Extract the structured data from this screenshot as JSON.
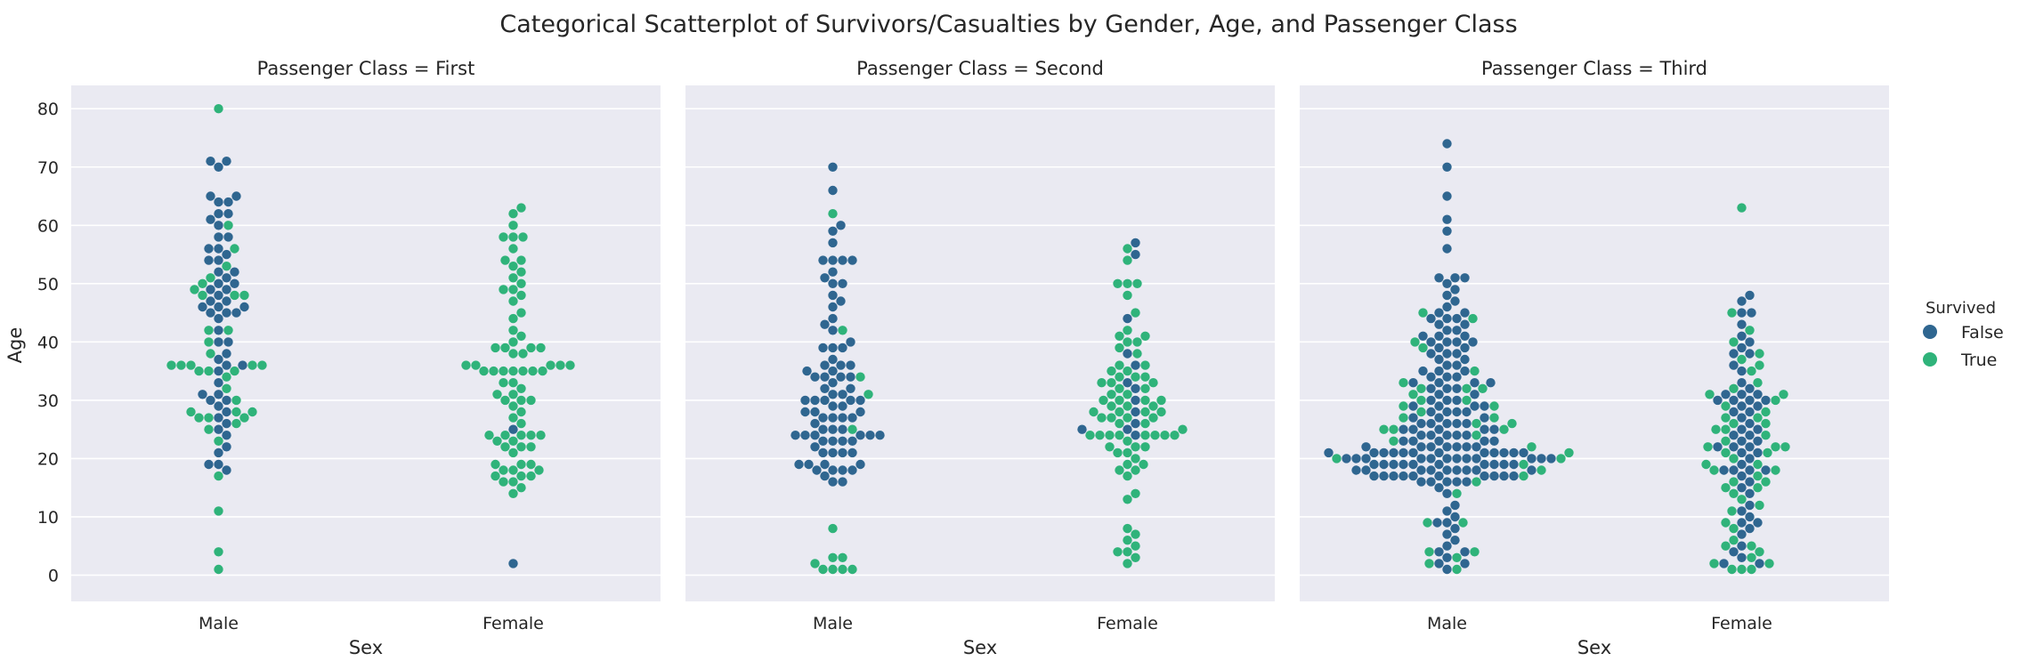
{
  "figure_title": "Categorical Scatterplot of Survivors/Casualties by Gender, Age, and Passenger Class",
  "colors": {
    "False": "#2f6690",
    "True": "#2fb37a",
    "panel_bg": "#eaeaf2",
    "grid": "#ffffff"
  },
  "chart_data": {
    "type": "scatter",
    "kind": "swarm",
    "title": "Categorical Scatterplot of Survivors/Casualties by Gender, Age, and Passenger Class",
    "xlabel": "Sex",
    "ylabel": "Age",
    "categories": [
      "Male",
      "Female"
    ],
    "yticks": [
      0,
      10,
      20,
      30,
      40,
      50,
      60,
      70,
      80
    ],
    "ylim": [
      -4.5,
      84
    ],
    "grid": true,
    "legend": {
      "title": "Survived",
      "entries": [
        "False",
        "True"
      ],
      "placement": "right"
    },
    "panels": [
      {
        "title": "Passenger Class = First",
        "points": {
          "Male": {
            "False": [
              71,
              71,
              70,
              65,
              65,
              64,
              64,
              62,
              62,
              61,
              60,
              58,
              58,
              56,
              56,
              55,
              54,
              54,
              52,
              52,
              51,
              50,
              50,
              49,
              49,
              48,
              47,
              47,
              46,
              46,
              46,
              45,
              45,
              45,
              44,
              42,
              40,
              40,
              38,
              37,
              36,
              36,
              35,
              33,
              31,
              31,
              30,
              30,
              29,
              28,
              27,
              26,
              25,
              24,
              22,
              21,
              19,
              19,
              18
            ],
            "True": [
              80,
              60,
              56,
              53,
              51,
              50,
              49,
              48,
              48,
              48,
              42,
              42,
              40,
              38,
              36,
              36,
              36,
              36,
              36,
              35,
              35,
              35,
              34,
              32,
              30,
              28,
              28,
              28,
              27,
              27,
              27,
              26,
              25,
              23,
              17,
              11,
              4,
              1
            ]
          },
          "Female": {
            "False": [
              25,
              2
            ],
            "True": [
              63,
              62,
              60,
              58,
              58,
              58,
              56,
              54,
              54,
              53,
              52,
              51,
              50,
              49,
              49,
              48,
              47,
              45,
              44,
              42,
              41,
              40,
              39,
              39,
              39,
              39,
              38,
              38,
              36,
              36,
              36,
              36,
              36,
              35,
              35,
              35,
              35,
              35,
              35,
              35,
              33,
              33,
              32,
              31,
              31,
              30,
              30,
              30,
              29,
              28,
              27,
              26,
              24,
              24,
              24,
              24,
              24,
              23,
              23,
              22,
              22,
              22,
              21,
              19,
              19,
              19,
              18,
              18,
              18,
              17,
              17,
              17,
              16,
              16,
              15,
              14
            ]
          }
        }
      },
      {
        "title": "Passenger Class = Second",
        "points": {
          "Male": {
            "False": [
              70,
              66,
              60,
              59,
              57,
              54,
              54,
              54,
              54,
              52,
              51,
              50,
              50,
              48,
              47,
              46,
              44,
              43,
              42,
              40,
              39,
              39,
              39,
              37,
              36,
              36,
              36,
              35,
              35,
              34,
              34,
              34,
              34,
              33,
              32,
              32,
              31,
              31,
              30,
              30,
              30,
              30,
              30,
              29,
              29,
              28,
              28,
              28,
              27,
              27,
              27,
              27,
              26,
              25,
              25,
              25,
              24,
              24,
              24,
              24,
              24,
              24,
              23,
              23,
              23,
              23,
              22,
              21,
              21,
              21,
              21,
              19,
              19,
              19,
              19,
              18,
              18,
              18,
              18,
              17,
              16,
              16
            ],
            "True": [
              62,
              42,
              34,
              31,
              25,
              8,
              3,
              3,
              2,
              1,
              1,
              1,
              1
            ]
          },
          "Female": {
            "False": [
              57,
              55,
              44,
              38,
              36,
              33,
              32,
              30,
              28,
              26,
              25,
              25,
              24
            ],
            "True": [
              56,
              54,
              50,
              50,
              50,
              48,
              45,
              42,
              41,
              41,
              40,
              40,
              39,
              38,
              36,
              36,
              35,
              35,
              34,
              34,
              34,
              33,
              33,
              33,
              32,
              32,
              31,
              31,
              30,
              30,
              30,
              30,
              29,
              29,
              29,
              28,
              28,
              28,
              28,
              27,
              27,
              27,
              27,
              26,
              26,
              25,
              24,
              24,
              24,
              24,
              24,
              24,
              24,
              24,
              23,
              22,
              22,
              22,
              21,
              21,
              20,
              19,
              19,
              18,
              18,
              17,
              14,
              13,
              8,
              7,
              6,
              5,
              4,
              4,
              3,
              2
            ]
          }
        }
      },
      {
        "title": "Passenger Class = Third",
        "points": {
          "Male": {
            "False": [
              74,
              70,
              65,
              61,
              59,
              56,
              51,
              51,
              51,
              50,
              49,
              48,
              47,
              46,
              45,
              45,
              44,
              44,
              44,
              43,
              43,
              42,
              42,
              41,
              41,
              41,
              40,
              40,
              40,
              40,
              39,
              39,
              38,
              38,
              38,
              37,
              37,
              36,
              36,
              35,
              35,
              35,
              34,
              34,
              34,
              33,
              33,
              33,
              33,
              32,
              32,
              32,
              31,
              31,
              30,
              30,
              30,
              29,
              29,
              29,
              29,
              28,
              28,
              28,
              28,
              27,
              27,
              27,
              26,
              26,
              26,
              26,
              26,
              25,
              25,
              25,
              25,
              25,
              24,
              24,
              24,
              24,
              24,
              23,
              23,
              23,
              23,
              23,
              22,
              22,
              22,
              22,
              22,
              22,
              22,
              21,
              21,
              21,
              21,
              21,
              21,
              21,
              21,
              21,
              21,
              21,
              21,
              20,
              20,
              20,
              20,
              20,
              20,
              20,
              20,
              20,
              20,
              20,
              20,
              19,
              19,
              19,
              19,
              19,
              19,
              19,
              19,
              19,
              19,
              18,
              18,
              18,
              18,
              18,
              18,
              18,
              18,
              18,
              17,
              17,
              17,
              17,
              17,
              17,
              17,
              17,
              17,
              17,
              16,
              16,
              16,
              16,
              16,
              15,
              14,
              12,
              11,
              10,
              9,
              9,
              8,
              7,
              6,
              5,
              4,
              4,
              3,
              2,
              2,
              1
            ],
            "True": [
              45,
              44,
              40,
              39,
              35,
              33,
              32,
              32,
              32,
              31,
              30,
              30,
              29,
              29,
              28,
              27,
              27,
              26,
              26,
              25,
              25,
              25,
              24,
              23,
              22,
              21,
              20,
              20,
              19,
              18,
              17,
              16,
              14,
              9,
              9,
              4,
              4,
              3,
              2,
              1
            ]
          },
          "Female": {
            "False": [
              48,
              47,
              45,
              45,
              43,
              41,
              40,
              39,
              38,
              38,
              36,
              35,
              33,
              32,
              31,
              31,
              31,
              30,
              30,
              30,
              30,
              29,
              29,
              28,
              28,
              27,
              26,
              25,
              25,
              24,
              24,
              23,
              23,
              22,
              22,
              22,
              21,
              21,
              20,
              19,
              18,
              18,
              18,
              18,
              17,
              16,
              15,
              14,
              12,
              11,
              10,
              9,
              9,
              8,
              7,
              5,
              4,
              3,
              2,
              2
            ],
            "True": [
              63,
              45,
              42,
              40,
              38,
              37,
              36,
              35,
              33,
              32,
              31,
              31,
              30,
              29,
              28,
              27,
              27,
              26,
              26,
              25,
              25,
              24,
              23,
              22,
              22,
              22,
              21,
              21,
              20,
              19,
              19,
              18,
              18,
              17,
              16,
              16,
              15,
              15,
              14,
              13,
              12,
              11,
              9,
              8,
              6,
              5,
              5,
              4,
              3,
              2,
              2,
              1,
              1,
              1
            ]
          }
        }
      }
    ]
  }
}
